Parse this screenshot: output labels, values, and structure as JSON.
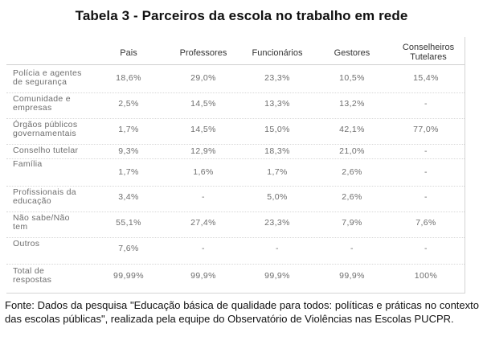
{
  "title": "Tabela 3 - Parceiros da escola no trabalho em rede",
  "columns": [
    "Pais",
    "Professores",
    "Funcionários",
    "Gestores",
    "Conselheiros Tutelares"
  ],
  "columns_display": {
    "c4_line1": "Conselheiros",
    "c4_line2": "Tutelares"
  },
  "rows": [
    {
      "label1": "Polícia e agentes",
      "label2": "de segurança",
      "values": [
        "18,6%",
        "29,0%",
        "23,3%",
        "10,5%",
        "15,4%"
      ]
    },
    {
      "label1": "Comunidade e",
      "label2": "empresas",
      "values": [
        "2,5%",
        "14,5%",
        "13,3%",
        "13,2%",
        "-"
      ]
    },
    {
      "label1": "Órgãos públicos",
      "label2": "governamentais",
      "values": [
        "1,7%",
        "14,5%",
        "15,0%",
        "42,1%",
        "77,0%"
      ]
    },
    {
      "label1": "Conselho tutelar",
      "label2": "",
      "values": [
        "9,3%",
        "12,9%",
        "18,3%",
        "21,0%",
        "-"
      ]
    },
    {
      "label1": "Família",
      "label2": "",
      "values": [
        "1,7%",
        "1,6%",
        "1,7%",
        "2,6%",
        "-"
      ]
    },
    {
      "label1": "Profissionais da",
      "label2": "educação",
      "values": [
        "3,4%",
        "-",
        "5,0%",
        "2,6%",
        "-"
      ]
    },
    {
      "label1": "Não sabe/Não",
      "label2": "tem",
      "values": [
        "55,1%",
        "27,4%",
        "23,3%",
        "7,9%",
        "7,6%"
      ]
    },
    {
      "label1": "Outros",
      "label2": "",
      "values": [
        "7,6%",
        "-",
        "-",
        "-",
        "-"
      ]
    },
    {
      "label1": "Total de",
      "label2": "respostas",
      "values": [
        "99,99%",
        "99,9%",
        "99,9%",
        "99,9%",
        "100%"
      ]
    }
  ],
  "source": "Fonte: Dados da pesquisa \"Educação básica de qualidade para todos: políticas e práticas no contexto das escolas públicas\", realizada pela equipe do Observatório de Violências nas Escolas PUCPR."
}
